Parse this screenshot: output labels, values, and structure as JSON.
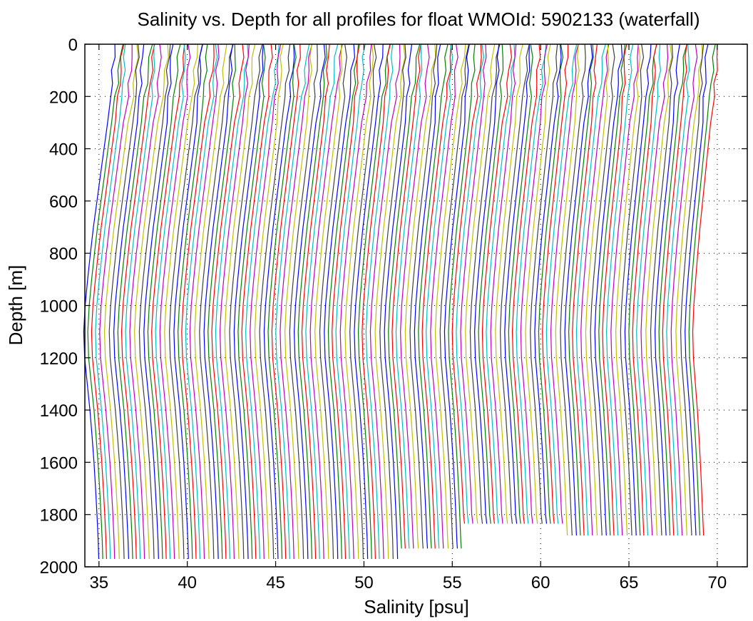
{
  "chart_data": {
    "type": "line",
    "title": "Salinity vs. Depth for all profiles for float WMOId: 5902133 (waterfall)",
    "xlabel": "Salinity [psu]",
    "ylabel": "Depth [m]",
    "xlim": [
      34.2,
      71.7
    ],
    "ylim": [
      0,
      2000
    ],
    "y_reversed": true,
    "grid": "dotted",
    "x_ticks": [
      35,
      40,
      45,
      50,
      55,
      60,
      65,
      70
    ],
    "y_ticks": [
      0,
      200,
      400,
      600,
      800,
      1000,
      1200,
      1400,
      1600,
      1800,
      2000
    ],
    "waterfall": {
      "profile_count": 143,
      "first_offset": 35.9,
      "step": 0.24,
      "base_profile": {
        "depth": [
          0,
          50,
          100,
          150,
          200,
          300,
          400,
          500,
          600,
          700,
          800,
          900,
          1000,
          1100,
          1200,
          1300,
          1400,
          1500,
          1600,
          1700,
          1800,
          1900,
          1970
        ],
        "value": [
          0.0,
          -0.05,
          -0.12,
          -0.18,
          -0.25,
          -0.45,
          -0.65,
          -0.85,
          -1.05,
          -1.25,
          -1.42,
          -1.58,
          -1.72,
          -1.8,
          -1.75,
          -1.6,
          -1.45,
          -1.33,
          -1.22,
          -1.13,
          -1.05,
          -0.98,
          -0.95
        ]
      },
      "color_cycle": [
        "#0000ff",
        "#008000",
        "#ff0000",
        "#00bfbf",
        "#bf00bf",
        "#bfbf00",
        "#3f3f3f"
      ]
    }
  }
}
